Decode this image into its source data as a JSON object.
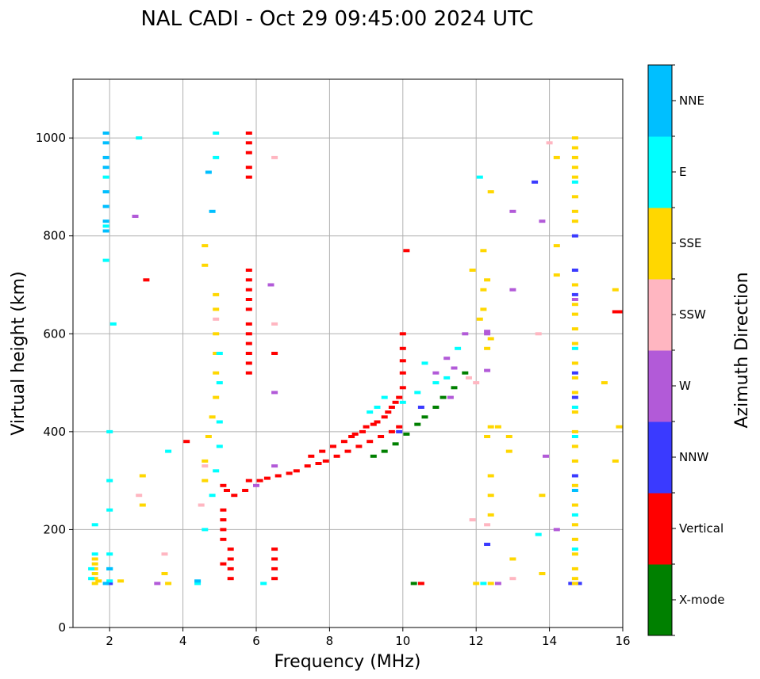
{
  "chart_data": {
    "type": "scatter",
    "title": "NAL CADI - Oct 29 09:45:00 2024 UTC",
    "xlabel": "Frequency (MHz)",
    "ylabel": "Virtual height (km)",
    "xlim": [
      1,
      16
    ],
    "ylim": [
      0,
      1120
    ],
    "xticks": [
      2,
      4,
      6,
      8,
      10,
      12,
      14,
      16
    ],
    "yticks": [
      0,
      200,
      400,
      600,
      800,
      1000
    ],
    "grid": true,
    "colorbar": {
      "label": "Azimuth Direction",
      "categories": [
        "X-mode",
        "Vertical",
        "NNW",
        "W",
        "SSW",
        "SSE",
        "E",
        "NNE"
      ],
      "colors": [
        "#008000",
        "#ff0000",
        "#3a3aff",
        "#b25ad8",
        "#ffb6c1",
        "#ffd700",
        "#00ffff",
        "#00bfff"
      ]
    },
    "series": [
      {
        "name": "Vertical",
        "color": "#ff0000",
        "points": [
          [
            5.8,
            1010
          ],
          [
            5.8,
            990
          ],
          [
            5.8,
            970
          ],
          [
            5.8,
            940
          ],
          [
            5.8,
            920
          ],
          [
            5.1,
            290
          ],
          [
            5.2,
            280
          ],
          [
            5.4,
            270
          ],
          [
            5.1,
            240
          ],
          [
            5.1,
            220
          ],
          [
            5.1,
            200
          ],
          [
            5.1,
            180
          ],
          [
            5.3,
            160
          ],
          [
            5.3,
            140
          ],
          [
            5.3,
            120
          ],
          [
            5.3,
            100
          ],
          [
            5.1,
            130
          ],
          [
            5.8,
            730
          ],
          [
            5.8,
            710
          ],
          [
            5.8,
            690
          ],
          [
            5.8,
            670
          ],
          [
            5.8,
            650
          ],
          [
            5.8,
            620
          ],
          [
            5.8,
            600
          ],
          [
            5.8,
            580
          ],
          [
            5.8,
            560
          ],
          [
            5.8,
            540
          ],
          [
            5.8,
            520
          ],
          [
            5.7,
            280
          ],
          [
            5.8,
            300
          ],
          [
            6.5,
            160
          ],
          [
            6.5,
            140
          ],
          [
            6.5,
            120
          ],
          [
            6.5,
            100
          ],
          [
            6.1,
            300
          ],
          [
            6.3,
            305
          ],
          [
            6.6,
            310
          ],
          [
            6.9,
            315
          ],
          [
            7.1,
            320
          ],
          [
            7.4,
            330
          ],
          [
            7.7,
            335
          ],
          [
            7.9,
            340
          ],
          [
            8.2,
            350
          ],
          [
            8.5,
            360
          ],
          [
            8.8,
            370
          ],
          [
            9.1,
            380
          ],
          [
            9.4,
            390
          ],
          [
            9.7,
            400
          ],
          [
            9.9,
            410
          ],
          [
            8.6,
            390
          ],
          [
            8.9,
            400
          ],
          [
            9.2,
            415
          ],
          [
            9.5,
            430
          ],
          [
            9.7,
            450
          ],
          [
            9.9,
            470
          ],
          [
            10.0,
            490
          ],
          [
            10.0,
            520
          ],
          [
            10.0,
            545
          ],
          [
            10.0,
            570
          ],
          [
            10.0,
            600
          ],
          [
            7.5,
            350
          ],
          [
            7.8,
            360
          ],
          [
            8.1,
            370
          ],
          [
            8.4,
            380
          ],
          [
            8.7,
            395
          ],
          [
            9.0,
            410
          ],
          [
            9.3,
            420
          ],
          [
            9.6,
            440
          ],
          [
            9.8,
            460
          ],
          [
            10.1,
            770
          ],
          [
            15.8,
            645
          ],
          [
            15.9,
            645
          ],
          [
            4.1,
            380
          ],
          [
            3.0,
            710
          ],
          [
            6.5,
            560
          ],
          [
            10.5,
            90
          ]
        ]
      },
      {
        "name": "X-mode",
        "color": "#008000",
        "points": [
          [
            9.2,
            350
          ],
          [
            9.5,
            360
          ],
          [
            9.8,
            375
          ],
          [
            10.1,
            395
          ],
          [
            10.4,
            415
          ],
          [
            10.6,
            430
          ],
          [
            10.9,
            450
          ],
          [
            11.1,
            470
          ],
          [
            11.4,
            490
          ],
          [
            11.7,
            520
          ],
          [
            10.3,
            90
          ]
        ]
      },
      {
        "name": "NNW",
        "color": "#3a3aff",
        "points": [
          [
            2.0,
            90
          ],
          [
            14.6,
            90
          ],
          [
            14.8,
            90
          ],
          [
            13.6,
            910
          ],
          [
            14.7,
            800
          ],
          [
            14.7,
            730
          ],
          [
            14.7,
            680
          ],
          [
            14.7,
            520
          ],
          [
            14.7,
            470
          ],
          [
            14.7,
            310
          ],
          [
            12.3,
            170
          ],
          [
            9.9,
            400
          ],
          [
            10.5,
            450
          ]
        ]
      },
      {
        "name": "W",
        "color": "#b25ad8",
        "points": [
          [
            13.0,
            850
          ],
          [
            13.8,
            830
          ],
          [
            14.7,
            670
          ],
          [
            13.0,
            690
          ],
          [
            11.7,
            600
          ],
          [
            11.2,
            550
          ],
          [
            11.4,
            530
          ],
          [
            10.9,
            520
          ],
          [
            11.3,
            470
          ],
          [
            12.3,
            600
          ],
          [
            12.3,
            525
          ],
          [
            12.6,
            90
          ],
          [
            13.9,
            350
          ],
          [
            3.3,
            90
          ],
          [
            6.5,
            480
          ],
          [
            6.4,
            700
          ],
          [
            6.0,
            290
          ],
          [
            6.5,
            330
          ],
          [
            2.7,
            840
          ],
          [
            14.2,
            200
          ],
          [
            12.3,
            605
          ]
        ]
      },
      {
        "name": "SSW",
        "color": "#ffb6c1",
        "points": [
          [
            4.5,
            250
          ],
          [
            4.6,
            330
          ],
          [
            4.9,
            630
          ],
          [
            6.5,
            620
          ],
          [
            6.5,
            960
          ],
          [
            11.8,
            510
          ],
          [
            12.0,
            500
          ],
          [
            12.3,
            210
          ],
          [
            13.7,
            600
          ],
          [
            14.0,
            990
          ],
          [
            3.5,
            150
          ],
          [
            2.8,
            270
          ],
          [
            11.9,
            220
          ],
          [
            13.0,
            100
          ]
        ]
      },
      {
        "name": "SSE",
        "color": "#ffd700",
        "points": [
          [
            1.6,
            90
          ],
          [
            1.6,
            100
          ],
          [
            1.6,
            110
          ],
          [
            1.6,
            120
          ],
          [
            1.6,
            130
          ],
          [
            1.6,
            140
          ],
          [
            1.7,
            95
          ],
          [
            2.3,
            95
          ],
          [
            3.6,
            90
          ],
          [
            3.5,
            110
          ],
          [
            2.9,
            310
          ],
          [
            2.9,
            250
          ],
          [
            4.6,
            780
          ],
          [
            4.6,
            740
          ],
          [
            4.9,
            680
          ],
          [
            4.9,
            650
          ],
          [
            4.9,
            600
          ],
          [
            4.9,
            560
          ],
          [
            4.9,
            520
          ],
          [
            4.9,
            470
          ],
          [
            4.8,
            430
          ],
          [
            4.7,
            390
          ],
          [
            4.6,
            340
          ],
          [
            4.6,
            300
          ],
          [
            12.2,
            770
          ],
          [
            12.3,
            710
          ],
          [
            12.2,
            690
          ],
          [
            12.2,
            650
          ],
          [
            12.1,
            630
          ],
          [
            12.4,
            590
          ],
          [
            12.3,
            570
          ],
          [
            12.4,
            410
          ],
          [
            12.3,
            390
          ],
          [
            12.4,
            310
          ],
          [
            12.4,
            270
          ],
          [
            12.4,
            230
          ],
          [
            12.6,
            410
          ],
          [
            12.9,
            390
          ],
          [
            12.9,
            360
          ],
          [
            13.0,
            140
          ],
          [
            12.0,
            90
          ],
          [
            12.4,
            90
          ],
          [
            13.8,
            270
          ],
          [
            13.8,
            110
          ],
          [
            14.2,
            780
          ],
          [
            14.2,
            720
          ],
          [
            14.2,
            960
          ],
          [
            14.7,
            1000
          ],
          [
            14.7,
            980
          ],
          [
            14.7,
            960
          ],
          [
            14.7,
            940
          ],
          [
            14.7,
            920
          ],
          [
            14.7,
            880
          ],
          [
            14.7,
            850
          ],
          [
            14.7,
            830
          ],
          [
            14.7,
            700
          ],
          [
            14.7,
            660
          ],
          [
            14.7,
            640
          ],
          [
            14.7,
            610
          ],
          [
            14.7,
            580
          ],
          [
            14.7,
            540
          ],
          [
            14.7,
            510
          ],
          [
            14.7,
            480
          ],
          [
            14.7,
            440
          ],
          [
            14.7,
            400
          ],
          [
            14.7,
            370
          ],
          [
            14.7,
            340
          ],
          [
            14.7,
            290
          ],
          [
            14.7,
            250
          ],
          [
            14.7,
            210
          ],
          [
            14.7,
            180
          ],
          [
            14.7,
            150
          ],
          [
            14.7,
            120
          ],
          [
            14.7,
            100
          ],
          [
            14.7,
            90
          ],
          [
            15.5,
            500
          ],
          [
            15.8,
            690
          ],
          [
            15.9,
            410
          ],
          [
            15.8,
            340
          ],
          [
            12.4,
            890
          ],
          [
            11.9,
            730
          ]
        ]
      },
      {
        "name": "E",
        "color": "#00ffff",
        "points": [
          [
            1.5,
            100
          ],
          [
            1.5,
            120
          ],
          [
            1.6,
            150
          ],
          [
            1.6,
            210
          ],
          [
            1.9,
            920
          ],
          [
            1.9,
            820
          ],
          [
            1.9,
            750
          ],
          [
            2.1,
            620
          ],
          [
            2.0,
            400
          ],
          [
            2.0,
            300
          ],
          [
            2.0,
            240
          ],
          [
            2.0,
            150
          ],
          [
            2.0,
            120
          ],
          [
            2.0,
            95
          ],
          [
            4.4,
            90
          ],
          [
            4.6,
            200
          ],
          [
            4.9,
            1010
          ],
          [
            4.9,
            960
          ],
          [
            5.0,
            560
          ],
          [
            5.0,
            500
          ],
          [
            5.0,
            420
          ],
          [
            5.0,
            370
          ],
          [
            4.9,
            320
          ],
          [
            4.8,
            270
          ],
          [
            9.3,
            450
          ],
          [
            9.1,
            440
          ],
          [
            9.5,
            470
          ],
          [
            10.0,
            460
          ],
          [
            10.4,
            480
          ],
          [
            10.9,
            500
          ],
          [
            10.6,
            540
          ],
          [
            11.2,
            510
          ],
          [
            11.5,
            570
          ],
          [
            12.1,
            920
          ],
          [
            14.7,
            910
          ],
          [
            14.7,
            570
          ],
          [
            14.7,
            450
          ],
          [
            14.7,
            390
          ],
          [
            14.7,
            230
          ],
          [
            14.7,
            160
          ],
          [
            13.7,
            190
          ],
          [
            12.2,
            90
          ],
          [
            6.2,
            90
          ],
          [
            3.6,
            360
          ],
          [
            2.8,
            1000
          ]
        ]
      },
      {
        "name": "NNE",
        "color": "#00bfff",
        "points": [
          [
            1.9,
            1010
          ],
          [
            1.9,
            990
          ],
          [
            1.9,
            960
          ],
          [
            1.9,
            940
          ],
          [
            1.9,
            890
          ],
          [
            1.9,
            860
          ],
          [
            1.9,
            830
          ],
          [
            1.9,
            810
          ],
          [
            1.9,
            90
          ],
          [
            2.0,
            120
          ],
          [
            4.4,
            95
          ],
          [
            4.7,
            930
          ],
          [
            4.8,
            850
          ],
          [
            14.7,
            280
          ]
        ]
      }
    ]
  }
}
